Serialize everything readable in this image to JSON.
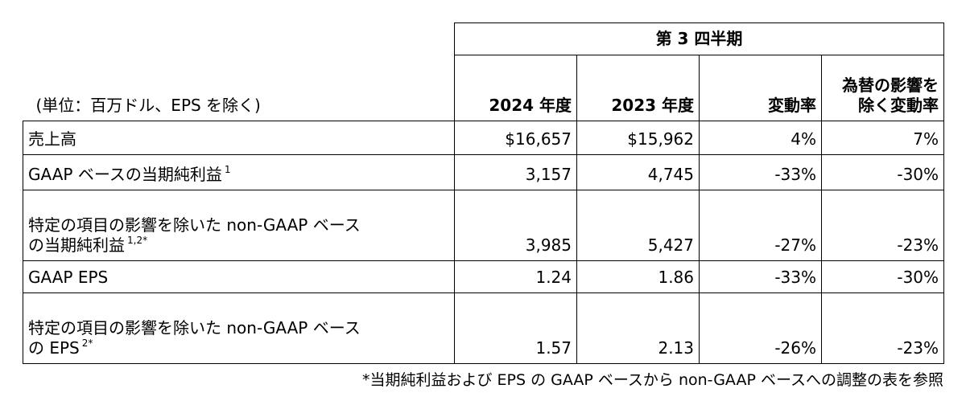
{
  "header": {
    "quarter": "第 3 四半期",
    "unit_label": "(単位：百万ドル、EPS を除く)",
    "col_2024": "2024 年度",
    "col_2023": "2023 年度",
    "col_change": "変動率",
    "col_fx_line1": "為替の影響を",
    "col_fx_line2": "除く変動率"
  },
  "rows": [
    {
      "label_line1": "売上高",
      "label_line2": "",
      "sup": "",
      "v2024": "$16,657",
      "v2023": "$15,962",
      "change": "4%",
      "fx_change": "7%"
    },
    {
      "label_line1": "GAAP ベースの当期純利益",
      "label_line2": "",
      "sup": "1",
      "v2024": "3,157",
      "v2023": "4,745",
      "change": "-33%",
      "fx_change": "-30%"
    },
    {
      "label_line1": "特定の項目の影響を除いた non-GAAP ベース",
      "label_line2": "の当期純利益",
      "sup": "1,2*",
      "v2024": "3,985",
      "v2023": "5,427",
      "change": "-27%",
      "fx_change": "-23%"
    },
    {
      "label_line1": "GAAP EPS",
      "label_line2": "",
      "sup": "",
      "v2024": "1.24",
      "v2023": "1.86",
      "change": "-33%",
      "fx_change": "-30%"
    },
    {
      "label_line1": "特定の項目の影響を除いた non-GAAP ベース",
      "label_line2": "の EPS",
      "sup": "2*",
      "v2024": "1.57",
      "v2023": "2.13",
      "change": "-26%",
      "fx_change": "-23%"
    }
  ],
  "footnote": "*当期純利益および EPS の GAAP ベースから non-GAAP ベースへの調整の表を参照"
}
